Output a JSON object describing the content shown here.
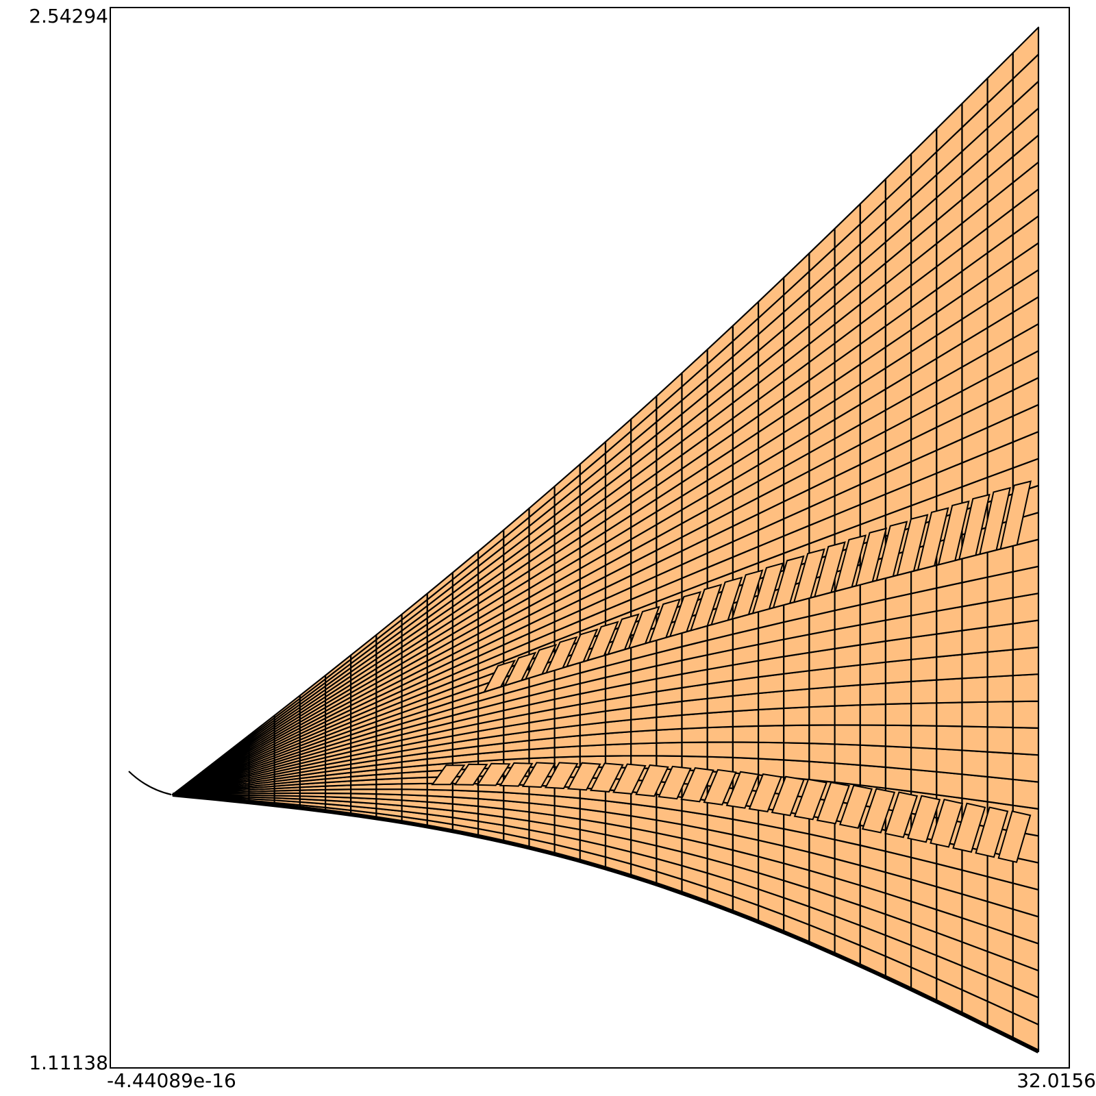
{
  "axes": {
    "y_max_label": "2.54294",
    "y_min_label": "1.11138",
    "x_min_label": "-4.44089e-16",
    "x_max_label": "32.0156"
  },
  "colors": {
    "mesh_fill": "#ffbf80",
    "mesh_edge": "#000000",
    "frame": "#000000",
    "background": "#ffffff"
  }
}
